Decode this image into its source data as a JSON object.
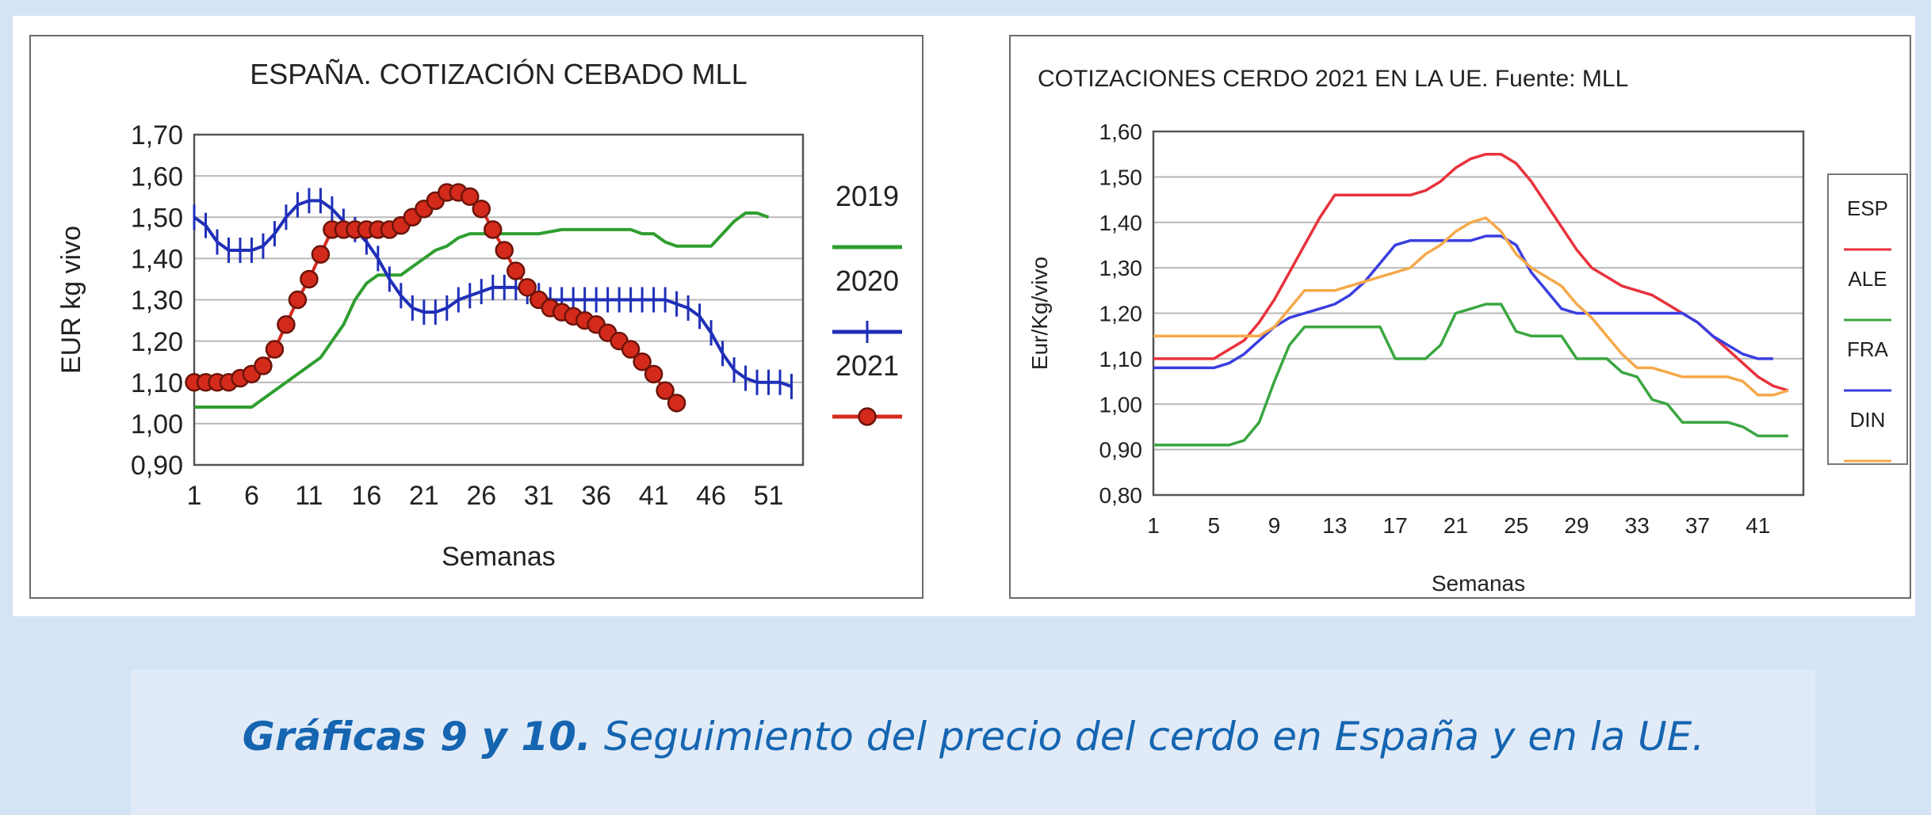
{
  "chart_data": [
    {
      "type": "line",
      "title": "ESPAÑA. COTIZACIÓN CEBADO MLL",
      "xlabel": "Semanas",
      "ylabel": "EUR kg vivo",
      "xlim": [
        1,
        54
      ],
      "ylim": [
        0.9,
        1.7
      ],
      "yticks": [
        "1,70",
        "1,60",
        "1,50",
        "1,40",
        "1,30",
        "1,20",
        "1,10",
        "1,00",
        "0,90"
      ],
      "xticks": [
        "1",
        "6",
        "11",
        "16",
        "21",
        "26",
        "31",
        "36",
        "41",
        "46",
        "51"
      ],
      "grid": true,
      "legend_position": "right",
      "series": [
        {
          "name": "2019",
          "color": "#2f9e2f",
          "marker": "none",
          "x": [
            1,
            3,
            5,
            6,
            7,
            9,
            11,
            12,
            13,
            14,
            15,
            16,
            17,
            18,
            19,
            20,
            21,
            22,
            23,
            24,
            25,
            26,
            27,
            28,
            29,
            30,
            31,
            33,
            35,
            37,
            39,
            40,
            41,
            42,
            43,
            45,
            46,
            47,
            48,
            49,
            50,
            51
          ],
          "y": [
            1.04,
            1.04,
            1.04,
            1.04,
            1.06,
            1.1,
            1.14,
            1.16,
            1.2,
            1.24,
            1.3,
            1.34,
            1.36,
            1.36,
            1.36,
            1.38,
            1.4,
            1.42,
            1.43,
            1.45,
            1.46,
            1.46,
            1.46,
            1.46,
            1.46,
            1.46,
            1.46,
            1.47,
            1.47,
            1.47,
            1.47,
            1.46,
            1.46,
            1.44,
            1.43,
            1.43,
            1.43,
            1.46,
            1.49,
            1.51,
            1.51,
            1.5
          ]
        },
        {
          "name": "2020",
          "color": "#1f2fb8",
          "marker": "plus",
          "x": [
            1,
            2,
            3,
            4,
            5,
            6,
            7,
            8,
            9,
            10,
            11,
            12,
            13,
            14,
            15,
            16,
            17,
            18,
            19,
            20,
            21,
            22,
            23,
            24,
            25,
            26,
            27,
            28,
            29,
            30,
            31,
            32,
            33,
            34,
            35,
            36,
            37,
            38,
            39,
            40,
            41,
            42,
            43,
            44,
            45,
            46,
            47,
            48,
            49,
            50,
            51,
            52,
            53
          ],
          "y": [
            1.5,
            1.48,
            1.44,
            1.42,
            1.42,
            1.42,
            1.43,
            1.46,
            1.5,
            1.53,
            1.54,
            1.54,
            1.52,
            1.49,
            1.47,
            1.44,
            1.4,
            1.35,
            1.31,
            1.28,
            1.27,
            1.27,
            1.28,
            1.3,
            1.31,
            1.32,
            1.33,
            1.33,
            1.33,
            1.32,
            1.31,
            1.3,
            1.3,
            1.3,
            1.3,
            1.3,
            1.3,
            1.3,
            1.3,
            1.3,
            1.3,
            1.3,
            1.29,
            1.28,
            1.26,
            1.22,
            1.17,
            1.13,
            1.11,
            1.1,
            1.1,
            1.1,
            1.09
          ]
        },
        {
          "name": "2021",
          "color": "#d42a1c",
          "marker": "circle",
          "x": [
            1,
            2,
            3,
            4,
            5,
            6,
            7,
            8,
            9,
            10,
            11,
            12,
            13,
            14,
            15,
            16,
            17,
            18,
            19,
            20,
            21,
            22,
            23,
            24,
            25,
            26,
            27,
            28,
            29,
            30,
            31,
            32,
            33,
            34,
            35,
            36,
            37,
            38,
            39,
            40,
            41,
            42,
            43
          ],
          "y": [
            1.1,
            1.1,
            1.1,
            1.1,
            1.11,
            1.12,
            1.14,
            1.18,
            1.24,
            1.3,
            1.35,
            1.41,
            1.47,
            1.47,
            1.47,
            1.47,
            1.47,
            1.47,
            1.48,
            1.5,
            1.52,
            1.54,
            1.56,
            1.56,
            1.55,
            1.52,
            1.47,
            1.42,
            1.37,
            1.33,
            1.3,
            1.28,
            1.27,
            1.26,
            1.25,
            1.24,
            1.22,
            1.2,
            1.18,
            1.15,
            1.12,
            1.08,
            1.05
          ]
        }
      ]
    },
    {
      "type": "line",
      "title": "COTIZACIONES CERDO 2021 EN LA UE. Fuente: MLL",
      "xlabel": "Semanas",
      "ylabel": "Eur/Kg/vivo",
      "xlim": [
        1,
        44
      ],
      "ylim": [
        0.8,
        1.6
      ],
      "yticks": [
        "1,60",
        "1,50",
        "1,40",
        "1,30",
        "1,20",
        "1,10",
        "1,00",
        "0,90",
        "0,80"
      ],
      "xticks": [
        "1",
        "5",
        "9",
        "13",
        "17",
        "21",
        "25",
        "29",
        "33",
        "37",
        "41"
      ],
      "grid": true,
      "legend_position": "right",
      "series": [
        {
          "name": "ESP",
          "color": "#e8323c",
          "x": [
            1,
            3,
            5,
            6,
            7,
            8,
            9,
            10,
            11,
            12,
            13,
            14,
            15,
            16,
            17,
            18,
            19,
            20,
            21,
            22,
            23,
            24,
            25,
            26,
            27,
            28,
            29,
            30,
            31,
            32,
            33,
            34,
            35,
            36,
            37,
            38,
            39,
            40,
            41,
            42,
            43
          ],
          "y": [
            1.1,
            1.1,
            1.1,
            1.12,
            1.14,
            1.18,
            1.23,
            1.29,
            1.35,
            1.41,
            1.46,
            1.46,
            1.46,
            1.46,
            1.46,
            1.46,
            1.47,
            1.49,
            1.52,
            1.54,
            1.55,
            1.55,
            1.53,
            1.49,
            1.44,
            1.39,
            1.34,
            1.3,
            1.28,
            1.26,
            1.25,
            1.24,
            1.22,
            1.2,
            1.18,
            1.15,
            1.12,
            1.09,
            1.06,
            1.04,
            1.03
          ]
        },
        {
          "name": "ALE",
          "color": "#3aa640",
          "x": [
            1,
            3,
            5,
            6,
            7,
            8,
            9,
            10,
            11,
            12,
            13,
            14,
            15,
            16,
            17,
            18,
            19,
            20,
            21,
            22,
            23,
            24,
            25,
            26,
            27,
            28,
            29,
            30,
            31,
            32,
            33,
            34,
            35,
            36,
            37,
            38,
            39,
            40,
            41,
            42,
            43
          ],
          "y": [
            0.91,
            0.91,
            0.91,
            0.91,
            0.92,
            0.96,
            1.05,
            1.13,
            1.17,
            1.17,
            1.17,
            1.17,
            1.17,
            1.17,
            1.1,
            1.1,
            1.1,
            1.13,
            1.2,
            1.21,
            1.22,
            1.22,
            1.16,
            1.15,
            1.15,
            1.15,
            1.1,
            1.1,
            1.1,
            1.07,
            1.06,
            1.01,
            1.0,
            0.96,
            0.96,
            0.96,
            0.96,
            0.95,
            0.93,
            0.93,
            0.93
          ]
        },
        {
          "name": "FRA",
          "color": "#3a3ee0",
          "x": [
            1,
            3,
            5,
            6,
            7,
            8,
            9,
            10,
            11,
            12,
            13,
            14,
            15,
            16,
            17,
            18,
            19,
            20,
            21,
            22,
            23,
            24,
            25,
            26,
            27,
            28,
            29,
            30,
            31,
            32,
            33,
            34,
            35,
            36,
            37,
            38,
            39,
            40,
            41,
            42
          ],
          "y": [
            1.08,
            1.08,
            1.08,
            1.09,
            1.11,
            1.14,
            1.17,
            1.19,
            1.2,
            1.21,
            1.22,
            1.24,
            1.27,
            1.31,
            1.35,
            1.36,
            1.36,
            1.36,
            1.36,
            1.36,
            1.37,
            1.37,
            1.35,
            1.29,
            1.25,
            1.21,
            1.2,
            1.2,
            1.2,
            1.2,
            1.2,
            1.2,
            1.2,
            1.2,
            1.18,
            1.15,
            1.13,
            1.11,
            1.1,
            1.1
          ]
        },
        {
          "name": "DIN",
          "color": "#f5a94a",
          "x": [
            1,
            3,
            5,
            6,
            7,
            8,
            9,
            10,
            11,
            12,
            13,
            14,
            15,
            16,
            17,
            18,
            19,
            20,
            21,
            22,
            23,
            24,
            25,
            26,
            27,
            28,
            29,
            30,
            31,
            32,
            33,
            34,
            35,
            36,
            37,
            38,
            39,
            40,
            41,
            42,
            43
          ],
          "y": [
            1.15,
            1.15,
            1.15,
            1.15,
            1.15,
            1.15,
            1.17,
            1.21,
            1.25,
            1.25,
            1.25,
            1.26,
            1.27,
            1.28,
            1.29,
            1.3,
            1.33,
            1.35,
            1.38,
            1.4,
            1.41,
            1.38,
            1.33,
            1.3,
            1.28,
            1.26,
            1.22,
            1.19,
            1.15,
            1.11,
            1.08,
            1.08,
            1.07,
            1.06,
            1.06,
            1.06,
            1.06,
            1.05,
            1.02,
            1.02,
            1.03
          ]
        }
      ]
    }
  ],
  "caption": {
    "bold": "Gráficas 9 y 10.",
    "text": " Seguimiento del precio del cerdo en España y en la UE."
  }
}
